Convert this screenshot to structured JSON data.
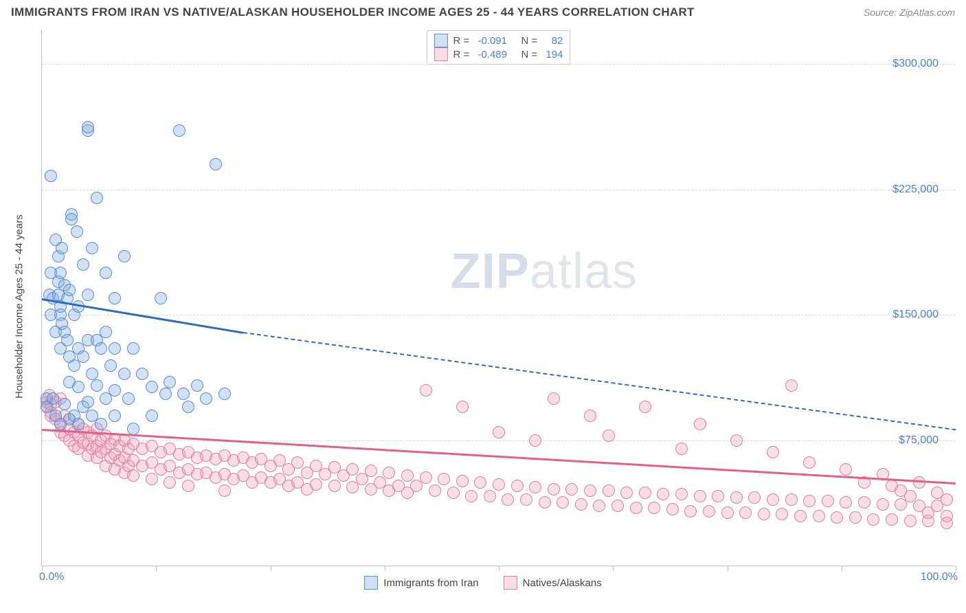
{
  "header": {
    "title": "IMMIGRANTS FROM IRAN VS NATIVE/ALASKAN HOUSEHOLDER INCOME AGES 25 - 44 YEARS CORRELATION CHART",
    "source": "Source: ZipAtlas.com"
  },
  "chart": {
    "type": "scatter",
    "ylabel": "Householder Income Ages 25 - 44 years",
    "x_min_label": "0.0%",
    "x_max_label": "100.0%",
    "xlim": [
      0,
      100
    ],
    "ylim": [
      0,
      320000
    ],
    "y_ticks": [
      75000,
      150000,
      225000,
      300000
    ],
    "y_tick_labels": [
      "$75,000",
      "$150,000",
      "$225,000",
      "$300,000"
    ],
    "x_ticks": [
      0,
      12.5,
      25,
      37.5,
      50,
      62.5,
      75,
      87.5,
      100
    ],
    "grid_color": "#d8d8d8",
    "axis_color": "#bfbfbf",
    "background_color": "#ffffff",
    "tick_label_color": "#4a80d8",
    "axis_label_color": "#444444",
    "watermark": {
      "text_bold": "ZIP",
      "text_light": "atlas"
    },
    "point_radius": 9,
    "point_stroke_width": 1.5,
    "series": {
      "blue": {
        "label": "Immigrants from Iran",
        "fill": "rgba(122,168,226,0.35)",
        "stroke": "#5a8ecf",
        "stats": {
          "R": "-0.091",
          "N": "82"
        },
        "trend": {
          "solid": {
            "x1": 0,
            "y1": 160000,
            "x2": 22,
            "y2": 140000,
            "width": 3,
            "color": "#2f6bc0"
          },
          "dashed": {
            "x1": 22,
            "y1": 140000,
            "x2": 100,
            "y2": 82000,
            "width": 2,
            "color": "#2f6bc0",
            "dash": true
          }
        },
        "points": [
          [
            0.5,
            100000
          ],
          [
            0.5,
            95000
          ],
          [
            0.8,
            162000
          ],
          [
            1.0,
            150000
          ],
          [
            1.0,
            175000
          ],
          [
            1.0,
            233000
          ],
          [
            1.2,
            160000
          ],
          [
            1.2,
            100000
          ],
          [
            1.5,
            140000
          ],
          [
            1.5,
            195000
          ],
          [
            1.5,
            90000
          ],
          [
            1.8,
            162000
          ],
          [
            1.8,
            170000
          ],
          [
            1.8,
            185000
          ],
          [
            2.0,
            175000
          ],
          [
            2.0,
            155000
          ],
          [
            2.0,
            150000
          ],
          [
            2.0,
            130000
          ],
          [
            2.0,
            85000
          ],
          [
            2.2,
            190000
          ],
          [
            2.2,
            145000
          ],
          [
            2.5,
            168000
          ],
          [
            2.5,
            140000
          ],
          [
            2.5,
            97000
          ],
          [
            2.8,
            160000
          ],
          [
            2.8,
            135000
          ],
          [
            3.0,
            165000
          ],
          [
            3.0,
            110000
          ],
          [
            3.0,
            125000
          ],
          [
            3.0,
            88000
          ],
          [
            3.2,
            210000
          ],
          [
            3.2,
            207000
          ],
          [
            3.5,
            150000
          ],
          [
            3.5,
            120000
          ],
          [
            3.5,
            90000
          ],
          [
            3.8,
            200000
          ],
          [
            4.0,
            155000
          ],
          [
            4.0,
            130000
          ],
          [
            4.0,
            107000
          ],
          [
            4.0,
            85000
          ],
          [
            4.5,
            180000
          ],
          [
            4.5,
            125000
          ],
          [
            4.5,
            95000
          ],
          [
            5.0,
            260000
          ],
          [
            5.0,
            262000
          ],
          [
            5.0,
            162000
          ],
          [
            5.0,
            135000
          ],
          [
            5.0,
            98000
          ],
          [
            5.5,
            190000
          ],
          [
            5.5,
            115000
          ],
          [
            5.5,
            90000
          ],
          [
            6.0,
            220000
          ],
          [
            6.0,
            135000
          ],
          [
            6.0,
            108000
          ],
          [
            6.5,
            130000
          ],
          [
            6.5,
            85000
          ],
          [
            7.0,
            140000
          ],
          [
            7.0,
            175000
          ],
          [
            7.0,
            100000
          ],
          [
            7.5,
            120000
          ],
          [
            8.0,
            160000
          ],
          [
            8.0,
            130000
          ],
          [
            8.0,
            105000
          ],
          [
            8.0,
            90000
          ],
          [
            9.0,
            185000
          ],
          [
            9.0,
            115000
          ],
          [
            9.5,
            100000
          ],
          [
            10.0,
            130000
          ],
          [
            10.0,
            82000
          ],
          [
            11.0,
            115000
          ],
          [
            12.0,
            107000
          ],
          [
            12.0,
            90000
          ],
          [
            13.0,
            160000
          ],
          [
            13.5,
            103000
          ],
          [
            14.0,
            110000
          ],
          [
            15.0,
            260000
          ],
          [
            15.5,
            103000
          ],
          [
            16.0,
            95000
          ],
          [
            17.0,
            108000
          ],
          [
            18.0,
            100000
          ],
          [
            19.0,
            240000
          ],
          [
            20.0,
            103000
          ]
        ]
      },
      "pink": {
        "label": "Natives/Alaskans",
        "fill": "rgba(240,160,185,0.35)",
        "stroke": "#e07fa0",
        "stats": {
          "R": "-0.489",
          "N": "194"
        },
        "trend": {
          "solid": {
            "x1": 0,
            "y1": 82000,
            "x2": 100,
            "y2": 50000,
            "width": 3,
            "color": "#e45f8b"
          }
        },
        "points": [
          [
            0.5,
            98000
          ],
          [
            0.5,
            95000
          ],
          [
            0.8,
            102000
          ],
          [
            1,
            92000
          ],
          [
            1,
            97000
          ],
          [
            1,
            90000
          ],
          [
            1.5,
            98000
          ],
          [
            1.5,
            88000
          ],
          [
            2,
            100000
          ],
          [
            2,
            85000
          ],
          [
            2,
            80000
          ],
          [
            2.5,
            90000
          ],
          [
            2.5,
            78000
          ],
          [
            3,
            88000
          ],
          [
            3,
            82000
          ],
          [
            3,
            75000
          ],
          [
            3.5,
            80000
          ],
          [
            3.5,
            72000
          ],
          [
            4,
            85000
          ],
          [
            4,
            78000
          ],
          [
            4,
            70000
          ],
          [
            4.5,
            82000
          ],
          [
            4.5,
            74000
          ],
          [
            5,
            80000
          ],
          [
            5,
            73000
          ],
          [
            5,
            66000
          ],
          [
            5.5,
            78000
          ],
          [
            5.5,
            70000
          ],
          [
            6,
            82000
          ],
          [
            6,
            72000
          ],
          [
            6,
            65000
          ],
          [
            6.5,
            75000
          ],
          [
            6.5,
            68000
          ],
          [
            7,
            78000
          ],
          [
            7,
            70000
          ],
          [
            7,
            60000
          ],
          [
            7.5,
            73000
          ],
          [
            7.5,
            65000
          ],
          [
            8,
            76000
          ],
          [
            8,
            67000
          ],
          [
            8,
            58000
          ],
          [
            8.5,
            72000
          ],
          [
            8.5,
            63000
          ],
          [
            9,
            75000
          ],
          [
            9,
            65000
          ],
          [
            9,
            56000
          ],
          [
            9.5,
            70000
          ],
          [
            9.5,
            60000
          ],
          [
            10,
            73000
          ],
          [
            10,
            63000
          ],
          [
            10,
            54000
          ],
          [
            11,
            70000
          ],
          [
            11,
            60000
          ],
          [
            12,
            72000
          ],
          [
            12,
            62000
          ],
          [
            12,
            52000
          ],
          [
            13,
            68000
          ],
          [
            13,
            58000
          ],
          [
            14,
            70000
          ],
          [
            14,
            60000
          ],
          [
            14,
            50000
          ],
          [
            15,
            67000
          ],
          [
            15,
            56000
          ],
          [
            16,
            68000
          ],
          [
            16,
            58000
          ],
          [
            16,
            48000
          ],
          [
            17,
            65000
          ],
          [
            17,
            55000
          ],
          [
            18,
            66000
          ],
          [
            18,
            56000
          ],
          [
            19,
            64000
          ],
          [
            19,
            53000
          ],
          [
            20,
            66000
          ],
          [
            20,
            55000
          ],
          [
            20,
            45000
          ],
          [
            21,
            63000
          ],
          [
            21,
            52000
          ],
          [
            22,
            65000
          ],
          [
            22,
            54000
          ],
          [
            23,
            62000
          ],
          [
            23,
            50000
          ],
          [
            24,
            64000
          ],
          [
            24,
            53000
          ],
          [
            25,
            60000
          ],
          [
            25,
            50000
          ],
          [
            26,
            63000
          ],
          [
            26,
            52000
          ],
          [
            27,
            58000
          ],
          [
            27,
            48000
          ],
          [
            28,
            62000
          ],
          [
            28,
            50000
          ],
          [
            29,
            56000
          ],
          [
            29,
            46000
          ],
          [
            30,
            60000
          ],
          [
            30,
            49000
          ],
          [
            31,
            55000
          ],
          [
            32,
            59000
          ],
          [
            32,
            48000
          ],
          [
            33,
            54000
          ],
          [
            34,
            58000
          ],
          [
            34,
            47000
          ],
          [
            35,
            52000
          ],
          [
            36,
            57000
          ],
          [
            36,
            46000
          ],
          [
            37,
            50000
          ],
          [
            38,
            56000
          ],
          [
            38,
            45000
          ],
          [
            39,
            48000
          ],
          [
            40,
            54000
          ],
          [
            40,
            44000
          ],
          [
            41,
            48000
          ],
          [
            42,
            53000
          ],
          [
            42,
            105000
          ],
          [
            43,
            45000
          ],
          [
            44,
            52000
          ],
          [
            45,
            44000
          ],
          [
            46,
            51000
          ],
          [
            46,
            95000
          ],
          [
            47,
            42000
          ],
          [
            48,
            50000
          ],
          [
            49,
            42000
          ],
          [
            50,
            49000
          ],
          [
            50,
            80000
          ],
          [
            51,
            40000
          ],
          [
            52,
            48000
          ],
          [
            53,
            40000
          ],
          [
            54,
            47000
          ],
          [
            54,
            75000
          ],
          [
            55,
            38000
          ],
          [
            56,
            46000
          ],
          [
            56,
            100000
          ],
          [
            57,
            38000
          ],
          [
            58,
            46000
          ],
          [
            59,
            37000
          ],
          [
            60,
            45000
          ],
          [
            60,
            90000
          ],
          [
            61,
            36000
          ],
          [
            62,
            45000
          ],
          [
            62,
            78000
          ],
          [
            63,
            36000
          ],
          [
            64,
            44000
          ],
          [
            65,
            35000
          ],
          [
            66,
            44000
          ],
          [
            66,
            95000
          ],
          [
            67,
            35000
          ],
          [
            68,
            43000
          ],
          [
            69,
            34000
          ],
          [
            70,
            43000
          ],
          [
            70,
            70000
          ],
          [
            71,
            33000
          ],
          [
            72,
            42000
          ],
          [
            72,
            85000
          ],
          [
            73,
            33000
          ],
          [
            74,
            42000
          ],
          [
            75,
            32000
          ],
          [
            76,
            41000
          ],
          [
            76,
            75000
          ],
          [
            77,
            32000
          ],
          [
            78,
            41000
          ],
          [
            79,
            31000
          ],
          [
            80,
            40000
          ],
          [
            80,
            68000
          ],
          [
            81,
            31000
          ],
          [
            82,
            40000
          ],
          [
            82,
            108000
          ],
          [
            83,
            30000
          ],
          [
            84,
            39000
          ],
          [
            84,
            62000
          ],
          [
            85,
            30000
          ],
          [
            86,
            39000
          ],
          [
            87,
            29000
          ],
          [
            88,
            38000
          ],
          [
            88,
            58000
          ],
          [
            89,
            29000
          ],
          [
            90,
            38000
          ],
          [
            90,
            50000
          ],
          [
            91,
            28000
          ],
          [
            92,
            37000
          ],
          [
            92,
            55000
          ],
          [
            93,
            28000
          ],
          [
            93,
            48000
          ],
          [
            94,
            37000
          ],
          [
            94,
            45000
          ],
          [
            95,
            27000
          ],
          [
            95,
            42000
          ],
          [
            96,
            36000
          ],
          [
            96,
            50000
          ],
          [
            97,
            27000
          ],
          [
            97,
            32000
          ],
          [
            98,
            36000
          ],
          [
            98,
            44000
          ],
          [
            99,
            26000
          ],
          [
            99,
            30000
          ],
          [
            99,
            40000
          ]
        ]
      }
    },
    "legend": {
      "items": [
        "blue",
        "pink"
      ]
    }
  }
}
